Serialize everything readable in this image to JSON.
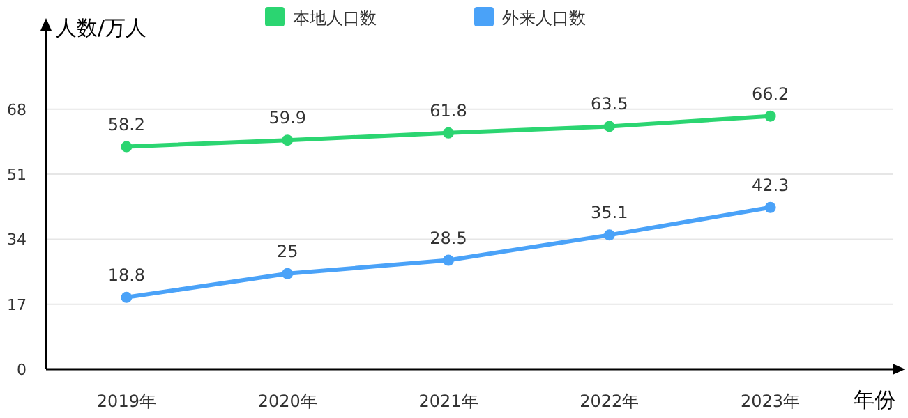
{
  "chart_data": {
    "type": "line",
    "ylabel": "人数/万人",
    "xlabel": "年份",
    "categories": [
      "2019年",
      "2020年",
      "2021年",
      "2022年",
      "2023年"
    ],
    "series": [
      {
        "name": "本地人口数",
        "color": "#2bd571",
        "values": [
          58.2,
          59.9,
          61.8,
          63.5,
          66.2
        ]
      },
      {
        "name": "外来人口数",
        "color": "#4aa2f8",
        "values": [
          18.8,
          25,
          28.5,
          35.1,
          42.3
        ]
      }
    ],
    "ylim": [
      0,
      90
    ],
    "yticks": [
      0,
      17,
      34,
      51,
      68
    ],
    "grid": "y",
    "legend": "top",
    "marker": "circle",
    "line_style": "solid",
    "data_labels": true
  }
}
